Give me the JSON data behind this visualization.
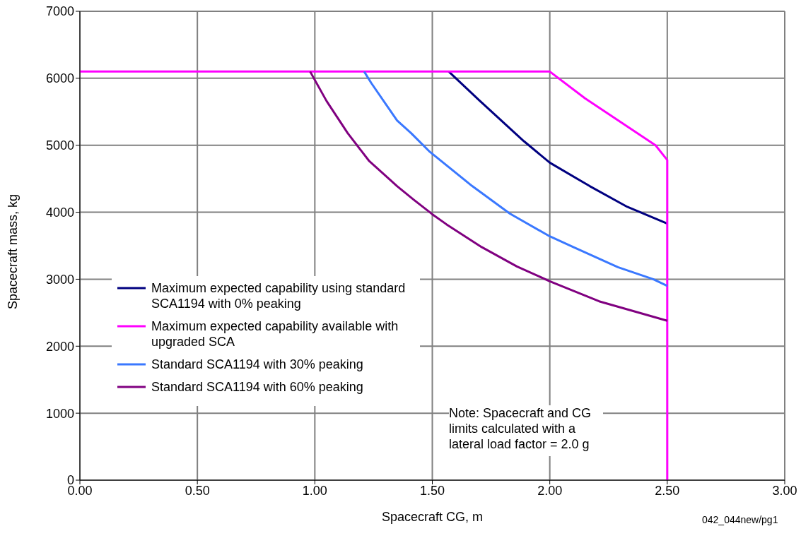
{
  "chart_data": {
    "type": "line",
    "xlabel": "Spacecraft CG, m",
    "ylabel": "Spacecraft mass, kg",
    "xlim": [
      0,
      3
    ],
    "ylim": [
      0,
      7000
    ],
    "xticks": [
      {
        "value": 0,
        "label": "0.00"
      },
      {
        "value": 0.5,
        "label": "0.50"
      },
      {
        "value": 1,
        "label": "1.00"
      },
      {
        "value": 1.5,
        "label": "1.50"
      },
      {
        "value": 2,
        "label": "2.00"
      },
      {
        "value": 2.5,
        "label": "2.50"
      },
      {
        "value": 3,
        "label": "3.00"
      }
    ],
    "yticks": [
      0,
      1000,
      2000,
      3000,
      4000,
      5000,
      6000,
      7000
    ],
    "grid": true,
    "legend": "left",
    "marker": "none",
    "line_style": "solid",
    "series": [
      {
        "name": "Maximum expected capability using standard SCA1194 with 0% peaking",
        "color": "#000080",
        "x": [
          1.57,
          1.7,
          1.89,
          2.0,
          2.17,
          2.33,
          2.5
        ],
        "values": [
          6100,
          5670,
          5060,
          4740,
          4390,
          4080,
          3830
        ]
      },
      {
        "name": "Maximum expected capability available with upgraded SCA",
        "color": "#ff00ff",
        "x": [
          0,
          2.0,
          2.15,
          2.45,
          2.5,
          2.5
        ],
        "values": [
          6100,
          6100,
          5700,
          5000,
          4780,
          0
        ]
      },
      {
        "name": "Standard SCA1194 with 30% peaking",
        "color": "#3a78ff",
        "x": [
          1.21,
          1.24,
          1.35,
          1.41,
          1.49,
          1.67,
          1.83,
          2.0,
          2.1,
          2.29,
          2.44,
          2.5
        ],
        "values": [
          6100,
          5930,
          5370,
          5180,
          4900,
          4390,
          3980,
          3640,
          3480,
          3180,
          3000,
          2900
        ]
      },
      {
        "name": "Standard SCA1194 with 60% peaking",
        "color": "#800080",
        "x": [
          0.98,
          1.05,
          1.14,
          1.23,
          1.35,
          1.42,
          1.5,
          1.56,
          1.71,
          1.86,
          2.0,
          2.21,
          2.5
        ],
        "values": [
          6100,
          5660,
          5180,
          4770,
          4390,
          4190,
          3970,
          3820,
          3480,
          3190,
          2970,
          2670,
          2380
        ]
      }
    ],
    "annotations": [
      "Note: Spacecraft and CG limits calculated with a lateral load factor = 2.0 g",
      "042_044new/pg1"
    ]
  }
}
